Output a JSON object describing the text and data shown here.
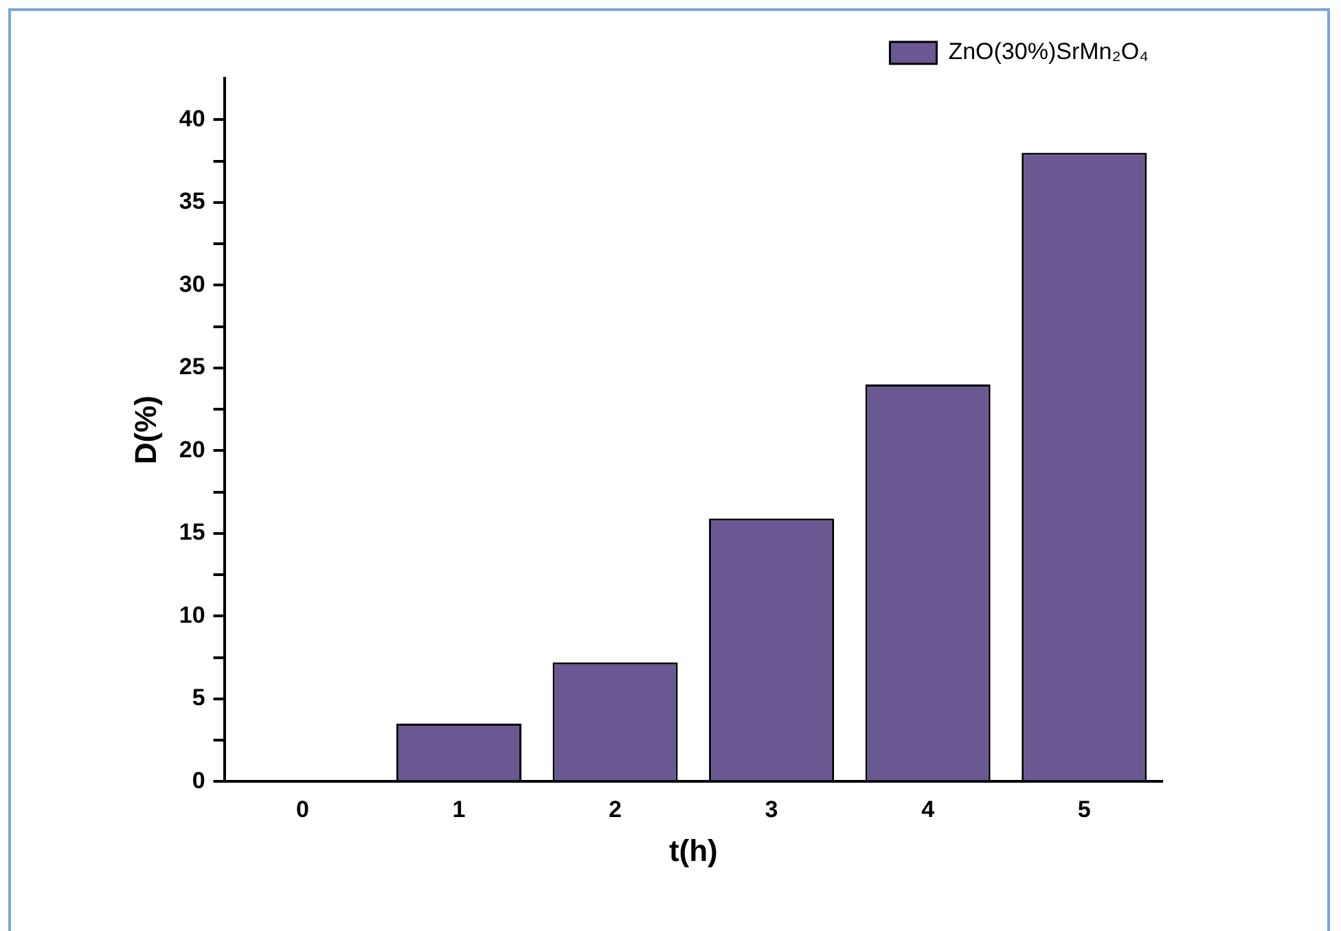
{
  "chart_data": {
    "type": "bar",
    "xlabel": "t(h)",
    "ylabel": "D(%)",
    "categories": [
      "0",
      "1",
      "2",
      "3",
      "4",
      "5"
    ],
    "series": [
      {
        "name": "ZnO(30%)SrMn₂O₄",
        "color": "#6a5893",
        "values": [
          0,
          3.5,
          7.2,
          15.9,
          24.0,
          38.0
        ]
      }
    ],
    "ylim": [
      0,
      42.5
    ],
    "yticks": [
      0,
      {
        "value": 2.5,
        "label": null
      },
      5,
      {
        "value": 7.5,
        "label": null
      },
      10,
      {
        "value": 12.5,
        "label": null
      },
      15,
      {
        "value": 17.5,
        "label": null
      },
      20,
      {
        "value": 22.5,
        "label": null
      },
      25,
      {
        "value": 27.5,
        "label": null
      },
      30,
      {
        "value": 32.5,
        "label": null
      },
      35,
      {
        "value": 37.5,
        "label": null
      },
      40
    ],
    "grid": false,
    "legend": "top right"
  }
}
